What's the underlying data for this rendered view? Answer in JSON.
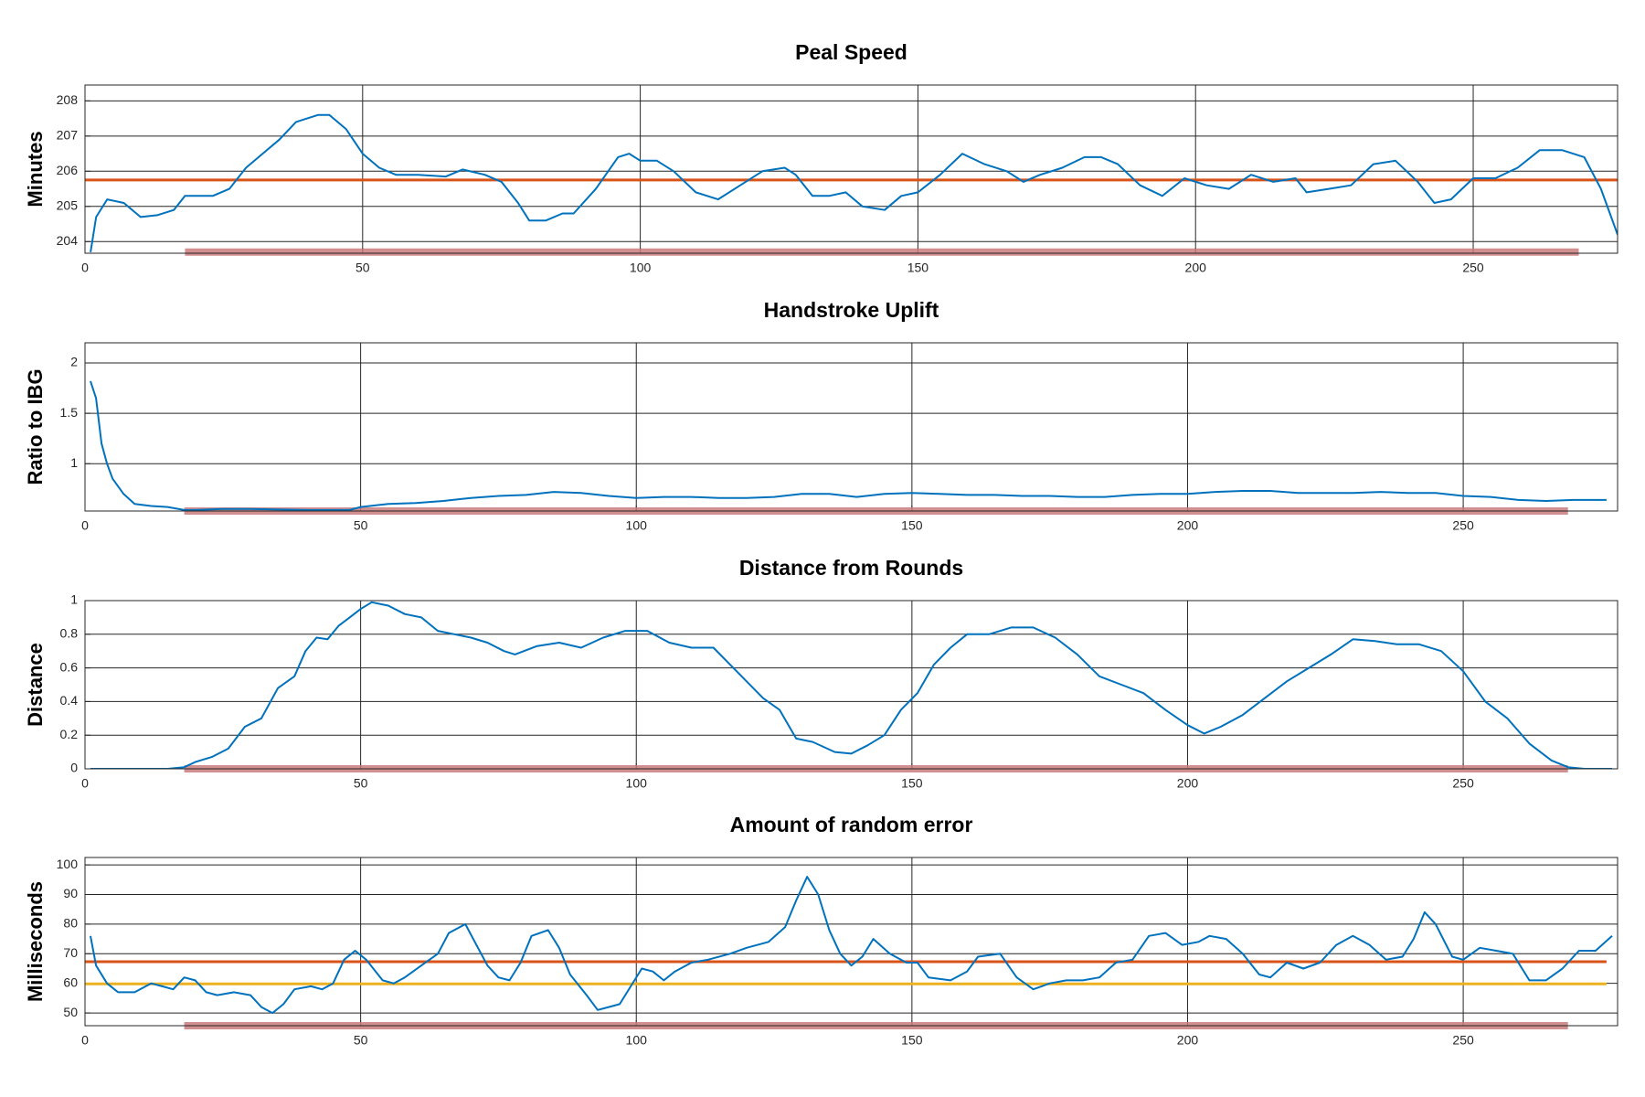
{
  "chart_data": [
    {
      "type": "line",
      "title": "Peal Speed",
      "y_label": "Minutes",
      "xlim": [
        0,
        276
      ],
      "ylim": [
        203.67,
        208.45
      ],
      "xticks": [
        0,
        50,
        100,
        150,
        200,
        250
      ],
      "yticks": [
        204,
        205,
        206,
        207,
        208
      ],
      "grid": true,
      "series": [
        {
          "color": "#0072bd",
          "linewidth": 2,
          "x": [
            1,
            2,
            4,
            7,
            10,
            13,
            16,
            18,
            20,
            23,
            26,
            29,
            32,
            35,
            38,
            40,
            42,
            44,
            47,
            50,
            53,
            56,
            60,
            65,
            68,
            72,
            75,
            78,
            80,
            83,
            86,
            88,
            92,
            96,
            98,
            100,
            103,
            106,
            110,
            114,
            118,
            122,
            126,
            128,
            131,
            134,
            137,
            140,
            144,
            147,
            150,
            154,
            158,
            162,
            166,
            169,
            172,
            176,
            180,
            183,
            186,
            190,
            194,
            198,
            202,
            206,
            210,
            214,
            218,
            220,
            224,
            228,
            232,
            236,
            240,
            243,
            246,
            250,
            254,
            258,
            262,
            266,
            270,
            273,
            276
          ],
          "values": [
            203.7,
            204.7,
            205.2,
            205.1,
            204.7,
            204.75,
            204.9,
            205.3,
            205.3,
            205.3,
            205.5,
            206.1,
            206.5,
            206.9,
            207.4,
            207.5,
            207.6,
            207.6,
            207.2,
            206.5,
            206.1,
            205.9,
            205.9,
            205.85,
            206.05,
            205.9,
            205.7,
            205.1,
            204.6,
            204.6,
            204.8,
            204.8,
            205.5,
            206.4,
            206.5,
            206.3,
            206.3,
            206.0,
            205.4,
            205.2,
            205.6,
            206.0,
            206.1,
            205.9,
            205.3,
            205.3,
            205.4,
            205.0,
            204.9,
            205.3,
            205.4,
            205.9,
            206.5,
            206.2,
            206.0,
            205.7,
            205.9,
            206.1,
            206.4,
            206.4,
            206.2,
            205.6,
            205.3,
            205.8,
            205.6,
            205.5,
            205.9,
            205.7,
            205.8,
            205.4,
            205.5,
            205.6,
            206.2,
            206.3,
            205.7,
            205.1,
            205.2,
            205.8,
            205.8,
            206.1,
            206.6,
            206.6,
            206.4,
            205.5,
            204.2
          ]
        },
        {
          "color": "#d95319",
          "linewidth": 3,
          "x": [
            0,
            276
          ],
          "values": [
            205.75,
            205.75
          ]
        },
        {
          "color": "#c97b7b",
          "linewidth": 8,
          "x": [
            18,
            269
          ],
          "values": [
            203.7,
            203.7
          ]
        }
      ]
    },
    {
      "type": "line",
      "title": "Handstroke Uplift",
      "y_label": "Ratio to IBG",
      "xlim": [
        0,
        278
      ],
      "ylim": [
        0.53,
        2.2
      ],
      "xticks": [
        0,
        50,
        100,
        150,
        200,
        250
      ],
      "yticks": [
        1,
        1.5,
        2
      ],
      "grid": true,
      "series": [
        {
          "color": "#0072bd",
          "linewidth": 2,
          "x": [
            1,
            2,
            3,
            4,
            5,
            7,
            9,
            12,
            15,
            18,
            20,
            25,
            30,
            40,
            48,
            50,
            55,
            60,
            65,
            70,
            75,
            80,
            85,
            90,
            95,
            100,
            105,
            110,
            115,
            120,
            125,
            130,
            135,
            140,
            145,
            150,
            155,
            160,
            165,
            170,
            175,
            180,
            185,
            190,
            195,
            200,
            205,
            210,
            215,
            220,
            225,
            230,
            235,
            240,
            245,
            250,
            255,
            260,
            265,
            270,
            276
          ],
          "values": [
            1.82,
            1.65,
            1.2,
            1.0,
            0.85,
            0.7,
            0.6,
            0.58,
            0.57,
            0.54,
            0.54,
            0.55,
            0.55,
            0.54,
            0.54,
            0.57,
            0.6,
            0.61,
            0.63,
            0.66,
            0.68,
            0.69,
            0.72,
            0.71,
            0.68,
            0.66,
            0.67,
            0.67,
            0.66,
            0.66,
            0.67,
            0.7,
            0.7,
            0.67,
            0.7,
            0.71,
            0.7,
            0.69,
            0.69,
            0.68,
            0.68,
            0.67,
            0.67,
            0.69,
            0.7,
            0.7,
            0.72,
            0.73,
            0.73,
            0.71,
            0.71,
            0.71,
            0.72,
            0.71,
            0.71,
            0.68,
            0.67,
            0.64,
            0.63,
            0.64,
            0.64
          ]
        },
        {
          "color": "#c97b7b",
          "linewidth": 8,
          "x": [
            18,
            269
          ],
          "values": [
            0.53,
            0.53
          ]
        }
      ]
    },
    {
      "type": "line",
      "title": "Distance from Rounds",
      "y_label": "Distance",
      "xlim": [
        0,
        278
      ],
      "ylim": [
        0,
        1
      ],
      "xticks": [
        0,
        50,
        100,
        150,
        200,
        250
      ],
      "yticks": [
        0,
        0.2,
        0.4,
        0.6,
        0.8,
        1
      ],
      "grid": true,
      "series": [
        {
          "color": "#0072bd",
          "linewidth": 2,
          "x": [
            1,
            10,
            15,
            18,
            20,
            23,
            26,
            29,
            32,
            35,
            38,
            40,
            42,
            44,
            46,
            48,
            50,
            52,
            55,
            58,
            61,
            64,
            67,
            70,
            73,
            76,
            78,
            82,
            86,
            90,
            94,
            98,
            102,
            106,
            110,
            114,
            117,
            120,
            123,
            126,
            129,
            132,
            136,
            139,
            142,
            145,
            148,
            151,
            154,
            157,
            160,
            164,
            168,
            172,
            176,
            180,
            184,
            188,
            192,
            196,
            200,
            203,
            206,
            210,
            214,
            218,
            222,
            226,
            230,
            234,
            238,
            242,
            246,
            250,
            254,
            258,
            262,
            266,
            269,
            272,
            277
          ],
          "values": [
            0,
            0,
            0,
            0.01,
            0.04,
            0.07,
            0.12,
            0.25,
            0.3,
            0.48,
            0.55,
            0.7,
            0.78,
            0.77,
            0.85,
            0.9,
            0.95,
            0.99,
            0.97,
            0.92,
            0.9,
            0.82,
            0.8,
            0.78,
            0.75,
            0.7,
            0.68,
            0.73,
            0.75,
            0.72,
            0.78,
            0.82,
            0.82,
            0.75,
            0.72,
            0.72,
            0.62,
            0.52,
            0.42,
            0.35,
            0.18,
            0.16,
            0.1,
            0.09,
            0.14,
            0.2,
            0.35,
            0.45,
            0.62,
            0.72,
            0.8,
            0.8,
            0.84,
            0.84,
            0.78,
            0.68,
            0.55,
            0.5,
            0.45,
            0.35,
            0.26,
            0.21,
            0.25,
            0.32,
            0.42,
            0.52,
            0.6,
            0.68,
            0.77,
            0.76,
            0.74,
            0.74,
            0.7,
            0.58,
            0.4,
            0.3,
            0.15,
            0.05,
            0.01,
            0,
            0
          ]
        },
        {
          "color": "#c97b7b",
          "linewidth": 8,
          "x": [
            18,
            269
          ],
          "values": [
            0,
            0
          ]
        }
      ]
    },
    {
      "type": "line",
      "title": "Amount of random error",
      "y_label": "Milliseconds",
      "xlim": [
        0,
        278
      ],
      "ylim": [
        45.7,
        102.5
      ],
      "xticks": [
        0,
        50,
        100,
        150,
        200,
        250
      ],
      "yticks": [
        50,
        60,
        70,
        80,
        90,
        100
      ],
      "grid": true,
      "series": [
        {
          "color": "#0072bd",
          "linewidth": 2,
          "x": [
            1,
            2,
            4,
            6,
            9,
            12,
            14,
            16,
            18,
            20,
            22,
            24,
            27,
            30,
            32,
            34,
            36,
            38,
            41,
            43,
            45,
            47,
            49,
            51,
            54,
            56,
            58,
            61,
            64,
            66,
            69,
            71,
            73,
            75,
            77,
            79,
            81,
            84,
            86,
            88,
            91,
            93,
            95,
            97,
            99,
            101,
            103,
            105,
            107,
            110,
            113,
            117,
            120,
            124,
            127,
            129,
            131,
            133,
            135,
            137,
            139,
            141,
            143,
            146,
            149,
            151,
            153,
            157,
            160,
            162,
            166,
            169,
            172,
            175,
            178,
            181,
            184,
            187,
            190,
            193,
            196,
            199,
            202,
            204,
            207,
            210,
            213,
            215,
            218,
            221,
            224,
            227,
            230,
            233,
            236,
            239,
            241,
            243,
            245,
            248,
            250,
            253,
            256,
            259,
            262,
            265,
            268,
            271,
            274,
            277
          ],
          "values": [
            76,
            66,
            60,
            57,
            57,
            60,
            59,
            58,
            62,
            61,
            57,
            56,
            57,
            56,
            52,
            50,
            53,
            58,
            59,
            58,
            60,
            68,
            71,
            68,
            61,
            60,
            62,
            66,
            70,
            77,
            80,
            73,
            66,
            62,
            61,
            67,
            76,
            78,
            72,
            63,
            56,
            51,
            52,
            53,
            59,
            65,
            64,
            61,
            64,
            67,
            68,
            70,
            72,
            74,
            79,
            88,
            96,
            90,
            78,
            70,
            66,
            69,
            75,
            70,
            67,
            67,
            62,
            61,
            64,
            69,
            70,
            62,
            58,
            60,
            61,
            61,
            62,
            67,
            68,
            76,
            77,
            73,
            74,
            76,
            75,
            70,
            63,
            62,
            67,
            65,
            67,
            73,
            76,
            73,
            68,
            69,
            75,
            84,
            80,
            69,
            68,
            72,
            71,
            70,
            61,
            61,
            65,
            71,
            71,
            76
          ]
        },
        {
          "color": "#d95319",
          "linewidth": 3,
          "x": [
            0,
            276
          ],
          "values": [
            67.3,
            67.3
          ]
        },
        {
          "color": "#edb120",
          "linewidth": 3,
          "x": [
            0,
            276
          ],
          "values": [
            59.8,
            59.8
          ]
        },
        {
          "color": "#c97b7b",
          "linewidth": 8,
          "x": [
            18,
            269
          ],
          "values": [
            45.7,
            45.7
          ]
        }
      ]
    }
  ]
}
